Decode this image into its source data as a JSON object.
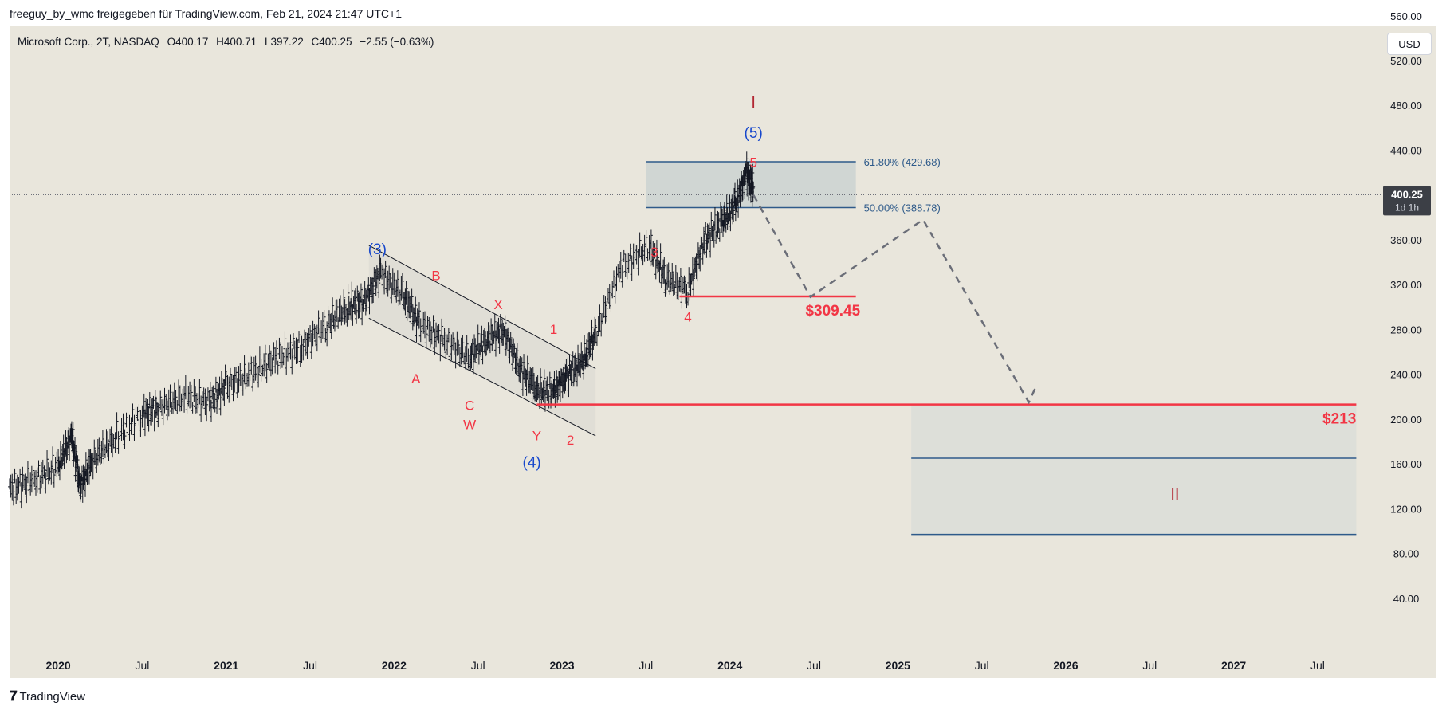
{
  "header": {
    "credit": "freeguy_by_wmc freigegeben für TradingView.com, Feb 21, 2024 21:47 UTC+1"
  },
  "legend": {
    "symbol": "Microsoft Corp., 2T, NASDAQ",
    "open": "O400.17",
    "high": "H400.71",
    "low": "L397.22",
    "close": "C400.25",
    "change": "−2.55 (−0.63%)"
  },
  "currency_button": "USD",
  "footer": {
    "logo_glyph": "𝟕",
    "brand": "TradingView"
  },
  "colors": {
    "background": "#e9e6dc",
    "red_label": "#f23645",
    "blue_label": "#1848cc",
    "dark_red": "#b22833",
    "fib_blue": "#2e5a8a",
    "last_price_bg": "#3c3f46"
  },
  "chart_data": {
    "type": "line",
    "title": "",
    "xlabel": "",
    "ylabel": "",
    "ylim": [
      20,
      580
    ],
    "y_ticks": [
      "560.00",
      "520.00",
      "480.00",
      "440.00",
      "400.00",
      "360.00",
      "320.00",
      "280.00",
      "240.00",
      "200.00",
      "160.00",
      "120.00",
      "80.00",
      "40.00"
    ],
    "x_ticks": [
      {
        "label": "2020",
        "t": 2020.0,
        "bold": true
      },
      {
        "label": "Jul",
        "t": 2020.5,
        "bold": false
      },
      {
        "label": "2021",
        "t": 2021.0,
        "bold": true
      },
      {
        "label": "Jul",
        "t": 2021.5,
        "bold": false
      },
      {
        "label": "2022",
        "t": 2022.0,
        "bold": true
      },
      {
        "label": "Jul",
        "t": 2022.5,
        "bold": false
      },
      {
        "label": "2023",
        "t": 2023.0,
        "bold": true
      },
      {
        "label": "Jul",
        "t": 2023.5,
        "bold": false
      },
      {
        "label": "2024",
        "t": 2024.0,
        "bold": true
      },
      {
        "label": "Jul",
        "t": 2024.5,
        "bold": false
      },
      {
        "label": "2025",
        "t": 2025.0,
        "bold": true
      },
      {
        "label": "Jul",
        "t": 2025.5,
        "bold": false
      },
      {
        "label": "2026",
        "t": 2026.0,
        "bold": true
      },
      {
        "label": "Jul",
        "t": 2026.5,
        "bold": false
      },
      {
        "label": "2027",
        "t": 2027.0,
        "bold": true
      },
      {
        "label": "Jul",
        "t": 2027.5,
        "bold": false
      }
    ],
    "series": [
      {
        "x": [
          2019.71,
          2019.85,
          2020.0,
          2020.08,
          2020.13,
          2020.2,
          2020.33,
          2020.5,
          2020.6,
          2020.75,
          2020.9,
          2021.0,
          2021.15,
          2021.3,
          2021.45,
          2021.6,
          2021.72,
          2021.82,
          2021.92,
          2022.05,
          2022.15,
          2022.3,
          2022.45,
          2022.55,
          2022.65,
          2022.75,
          2022.85,
          2022.95,
          2023.03,
          2023.12,
          2023.2,
          2023.35,
          2023.52,
          2023.62,
          2023.75,
          2023.85,
          2023.95,
          2024.03,
          2024.1,
          2024.14
        ],
        "y": [
          138,
          145,
          158,
          185,
          140,
          162,
          182,
          205,
          210,
          220,
          215,
          230,
          240,
          255,
          265,
          285,
          300,
          305,
          330,
          310,
          285,
          270,
          255,
          270,
          280,
          245,
          225,
          225,
          240,
          250,
          275,
          335,
          355,
          325,
          315,
          360,
          375,
          390,
          420,
          405
        ]
      }
    ],
    "last_price": "400.25",
    "last_price_countdown": "1d 1h",
    "fib_levels": [
      {
        "label": "61.80% (429.68)",
        "value": 429.68
      },
      {
        "label": "50.00% (388.78)",
        "value": 388.78
      }
    ],
    "fib_zone_x": [
      2023.5,
      2024.75
    ],
    "support_lines": [
      {
        "label": "$309.45",
        "value": 309.45,
        "x": [
          2023.7,
          2024.75
        ]
      },
      {
        "label": "$213",
        "value": 213,
        "x": [
          2022.85,
          2027.73
        ]
      }
    ],
    "target_zone": {
      "x": [
        2025.08,
        2027.73
      ],
      "y": [
        97,
        213
      ],
      "inner_line": 165
    },
    "projection_path": [
      {
        "x": 2024.14,
        "y": 400
      },
      {
        "x": 2024.48,
        "y": 309
      },
      {
        "x": 2025.15,
        "y": 378
      },
      {
        "x": 2025.78,
        "y": 215
      },
      {
        "x": 2025.82,
        "y": 228
      }
    ],
    "channel": {
      "upper": [
        {
          "x": 2021.85,
          "y": 355
        },
        {
          "x": 2023.2,
          "y": 245
        }
      ],
      "lower": [
        {
          "x": 2021.85,
          "y": 290
        },
        {
          "x": 2023.2,
          "y": 185
        }
      ]
    },
    "wave_labels": [
      {
        "text": "I",
        "x": 2024.14,
        "y": 478,
        "color": "dark_red",
        "size": 20
      },
      {
        "text": "(5)",
        "x": 2024.14,
        "y": 451,
        "color": "blue_label",
        "size": 19
      },
      {
        "text": "5",
        "x": 2024.14,
        "y": 425,
        "color": "red_label",
        "size": 17
      },
      {
        "text": "(3)",
        "x": 2021.9,
        "y": 347,
        "color": "blue_label",
        "size": 19
      },
      {
        "text": "B",
        "x": 2022.25,
        "y": 324,
        "color": "red_label",
        "size": 17
      },
      {
        "text": "X",
        "x": 2022.62,
        "y": 298,
        "color": "red_label",
        "size": 17
      },
      {
        "text": "1",
        "x": 2022.95,
        "y": 276,
        "color": "red_label",
        "size": 17
      },
      {
        "text": "A",
        "x": 2022.13,
        "y": 232,
        "color": "red_label",
        "size": 17
      },
      {
        "text": "C",
        "x": 2022.45,
        "y": 208,
        "color": "red_label",
        "size": 17
      },
      {
        "text": "W",
        "x": 2022.45,
        "y": 191,
        "color": "red_label",
        "size": 17
      },
      {
        "text": "Y",
        "x": 2022.85,
        "y": 181,
        "color": "red_label",
        "size": 17
      },
      {
        "text": "2",
        "x": 2023.05,
        "y": 177,
        "color": "red_label",
        "size": 17
      },
      {
        "text": "(4)",
        "x": 2022.82,
        "y": 157,
        "color": "blue_label",
        "size": 19
      },
      {
        "text": "3",
        "x": 2023.55,
        "y": 345,
        "color": "red_label",
        "size": 17
      },
      {
        "text": "4",
        "x": 2023.75,
        "y": 287,
        "color": "red_label",
        "size": 17
      },
      {
        "text": "II",
        "x": 2026.65,
        "y": 128,
        "color": "dark_red",
        "size": 20
      }
    ]
  }
}
